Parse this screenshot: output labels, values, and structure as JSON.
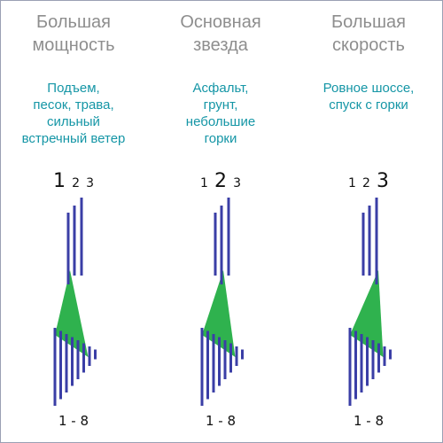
{
  "columns": [
    {
      "heading": [
        "Большая",
        "мощность"
      ],
      "usage": [
        "Подъем,",
        "песок, трава,",
        "сильный",
        "встречный ветер"
      ],
      "front_gears": [
        "1",
        "2",
        "3"
      ],
      "active_front": 0,
      "rear_range": "1 - 8"
    },
    {
      "heading": [
        "Основная",
        "звезда"
      ],
      "usage": [
        "Асфальт,",
        "грунт,",
        "небольшие",
        "горки"
      ],
      "front_gears": [
        "1",
        "2",
        "3"
      ],
      "active_front": 1,
      "rear_range": "1 - 8"
    },
    {
      "heading": [
        "Большая",
        "скорость"
      ],
      "usage": [
        "Ровное шоссе,",
        "спуск с горки"
      ],
      "front_gears": [
        "1",
        "2",
        "3"
      ],
      "active_front": 2,
      "rear_range": "1 - 8"
    }
  ],
  "colors": {
    "heading": "#8e8e8e",
    "usage": "#1596a6",
    "sprocket": "#3a3ea6",
    "chain": "#2fb24e"
  }
}
